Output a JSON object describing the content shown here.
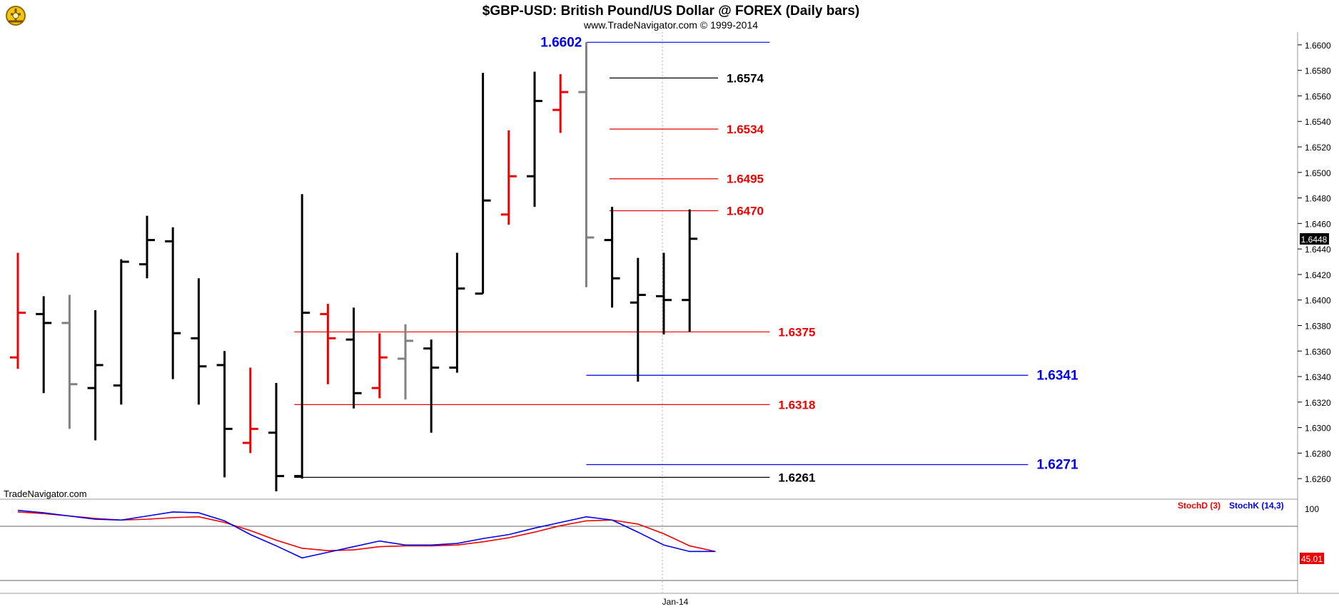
{
  "header": {
    "title": "$GBP-USD:  British Pound/US Dollar @ FOREX  (Daily bars)",
    "subtitle": "www.TradeNavigator.com © 1999-2014"
  },
  "watermark": "TradeNavigator.com",
  "colors": {
    "up_bar": "#000000",
    "down_bar": "#ee0000",
    "neutral_bar": "#808080",
    "blue_level": "#0000ee",
    "red_level": "#ee0000",
    "black_level": "#000000",
    "stoch_d": "#ee0000",
    "stoch_k": "#0000ee"
  },
  "chart_data": {
    "type": "ohlc",
    "price_axis": {
      "ylim": [
        1.6245,
        1.661
      ],
      "ticks": [
        "1.6600",
        "1.6580",
        "1.6560",
        "1.6540",
        "1.6520",
        "1.6500",
        "1.6480",
        "1.6460",
        "1.6440",
        "1.6420",
        "1.6400",
        "1.6380",
        "1.6360",
        "1.6340",
        "1.6320",
        "1.6300",
        "1.6280",
        "1.6260"
      ],
      "last_price": "1.6448"
    },
    "x_label": "Jan-14",
    "bars": [
      {
        "o": 1.6355,
        "h": 1.6437,
        "l": 1.6346,
        "c": 1.639,
        "color": "red"
      },
      {
        "o": 1.6389,
        "h": 1.6403,
        "l": 1.6327,
        "c": 1.6382,
        "color": "black"
      },
      {
        "o": 1.6382,
        "h": 1.6404,
        "l": 1.6299,
        "c": 1.6334,
        "color": "gray"
      },
      {
        "o": 1.6331,
        "h": 1.6392,
        "l": 1.629,
        "c": 1.6349,
        "color": "black"
      },
      {
        "o": 1.6333,
        "h": 1.6432,
        "l": 1.6318,
        "c": 1.643,
        "color": "black"
      },
      {
        "o": 1.6428,
        "h": 1.6466,
        "l": 1.6417,
        "c": 1.6447,
        "color": "black"
      },
      {
        "o": 1.6446,
        "h": 1.6457,
        "l": 1.6338,
        "c": 1.6374,
        "color": "black"
      },
      {
        "o": 1.637,
        "h": 1.6417,
        "l": 1.6318,
        "c": 1.6348,
        "color": "black"
      },
      {
        "o": 1.6349,
        "h": 1.636,
        "l": 1.6261,
        "c": 1.6299,
        "color": "black"
      },
      {
        "o": 1.6288,
        "h": 1.6347,
        "l": 1.628,
        "c": 1.6299,
        "color": "red"
      },
      {
        "o": 1.6296,
        "h": 1.6335,
        "l": 1.625,
        "c": 1.6262,
        "color": "black"
      },
      {
        "o": 1.6262,
        "h": 1.6483,
        "l": 1.626,
        "c": 1.639,
        "color": "black"
      },
      {
        "o": 1.6389,
        "h": 1.6397,
        "l": 1.6334,
        "c": 1.637,
        "color": "red"
      },
      {
        "o": 1.6369,
        "h": 1.6394,
        "l": 1.6315,
        "c": 1.6327,
        "color": "black"
      },
      {
        "o": 1.6331,
        "h": 1.6374,
        "l": 1.6323,
        "c": 1.6355,
        "color": "red"
      },
      {
        "o": 1.6354,
        "h": 1.6381,
        "l": 1.6322,
        "c": 1.6368,
        "color": "gray"
      },
      {
        "o": 1.6362,
        "h": 1.6369,
        "l": 1.6296,
        "c": 1.6347,
        "color": "black"
      },
      {
        "o": 1.6347,
        "h": 1.6437,
        "l": 1.6343,
        "c": 1.6409,
        "color": "black"
      },
      {
        "o": 1.6405,
        "h": 1.6578,
        "l": 1.6405,
        "c": 1.6478,
        "color": "black"
      },
      {
        "o": 1.6467,
        "h": 1.6533,
        "l": 1.6459,
        "c": 1.6497,
        "color": "red"
      },
      {
        "o": 1.6497,
        "h": 1.6579,
        "l": 1.6473,
        "c": 1.6556,
        "color": "black"
      },
      {
        "o": 1.6549,
        "h": 1.6577,
        "l": 1.6531,
        "c": 1.6563,
        "color": "red"
      },
      {
        "o": 1.6563,
        "h": 1.6602,
        "l": 1.641,
        "c": 1.6449,
        "color": "gray"
      },
      {
        "o": 1.6447,
        "h": 1.6473,
        "l": 1.6394,
        "c": 1.6417,
        "color": "black"
      },
      {
        "o": 1.6398,
        "h": 1.6433,
        "l": 1.6336,
        "c": 1.6404,
        "color": "black"
      },
      {
        "o": 1.6403,
        "h": 1.6437,
        "l": 1.6373,
        "c": 1.64,
        "color": "black"
      },
      {
        "o": 1.64,
        "h": 1.6471,
        "l": 1.6375,
        "c": 1.6448,
        "color": "black"
      }
    ],
    "levels": [
      {
        "value": "1.6602",
        "color": "blue",
        "x_start": 22,
        "x_end": 29.1,
        "label_side": "left"
      },
      {
        "value": "1.6574",
        "color": "black",
        "x_start": 22.9,
        "x_end": 27.1,
        "label_side": "right"
      },
      {
        "value": "1.6534",
        "color": "red",
        "x_start": 22.9,
        "x_end": 27.1,
        "label_side": "right"
      },
      {
        "value": "1.6495",
        "color": "red",
        "x_start": 22.9,
        "x_end": 27.1,
        "label_side": "right"
      },
      {
        "value": "1.6470",
        "color": "red",
        "x_start": 22.9,
        "x_end": 27.1,
        "label_side": "right"
      },
      {
        "value": "1.6375",
        "color": "red",
        "x_start": 10.7,
        "x_end": 29.1,
        "label_side": "right"
      },
      {
        "value": "1.6341",
        "color": "blue",
        "x_start": 22,
        "x_end": 39.1,
        "label_side": "right"
      },
      {
        "value": "1.6318",
        "color": "red",
        "x_start": 10.7,
        "x_end": 29.1,
        "label_side": "right"
      },
      {
        "value": "1.6271",
        "color": "blue",
        "x_start": 22,
        "x_end": 39.1,
        "label_side": "right"
      },
      {
        "value": "1.6261",
        "color": "black",
        "x_start": 10.7,
        "x_end": 29.1,
        "label_side": "right"
      }
    ],
    "stochastic": {
      "ylim": [
        -5,
        110
      ],
      "tick_label": "100",
      "stochd_label": "StochD (3)",
      "stochk_label": "StochK (14,3)",
      "last_value": "45.01",
      "stoch_d": [
        95,
        93,
        90,
        87,
        85,
        86,
        88,
        89,
        82,
        72,
        60,
        50,
        47,
        48,
        52,
        53,
        53,
        54,
        58,
        63,
        70,
        78,
        84,
        85,
        80,
        68,
        53,
        46
      ],
      "stoch_k": [
        97,
        94,
        90,
        86,
        85,
        90,
        95,
        94,
        84,
        67,
        53,
        38,
        45,
        52,
        59,
        54,
        54,
        56,
        62,
        67,
        75,
        82,
        89,
        85,
        70,
        54,
        46,
        46
      ]
    }
  }
}
